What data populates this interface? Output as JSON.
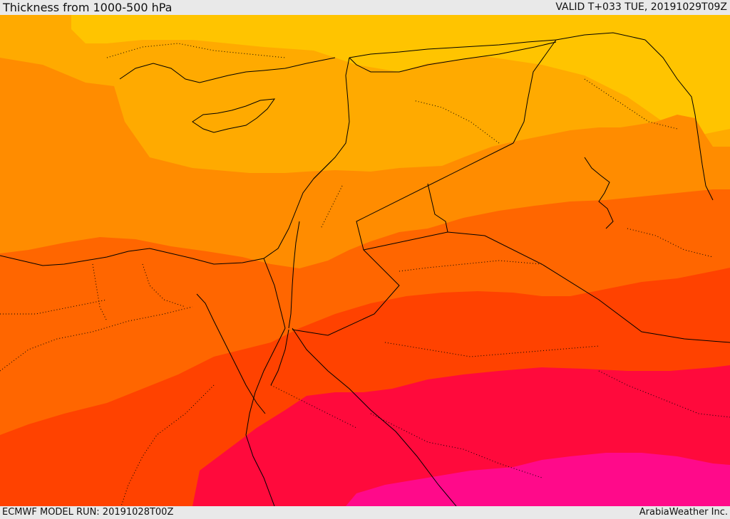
{
  "header": {
    "title": "Thickness from 1000-500 hPa",
    "valid": "VALID T+033 TUE, 20191029T09Z"
  },
  "footer": {
    "model_run": "ECMWF MODEL RUN: 20191028T00Z",
    "credit": "ArabiaWeather Inc."
  },
  "map": {
    "region": "Eastern Mediterranean / Middle East",
    "variable": "1000-500 hPa thickness",
    "bands": [
      {
        "name": "yellow-band",
        "color": "#ffc400"
      },
      {
        "name": "light-orange-band",
        "color": "#ffaa00"
      },
      {
        "name": "orange-band",
        "color": "#ff8c00"
      },
      {
        "name": "dark-orange-band",
        "color": "#ff6600"
      },
      {
        "name": "red-orange-band",
        "color": "#ff4200"
      },
      {
        "name": "crimson-band",
        "color": "#ff0a3c"
      },
      {
        "name": "magenta-band",
        "color": "#ff0a8a"
      }
    ],
    "line_colors": {
      "coast": "#000000",
      "border": "#000000"
    }
  }
}
